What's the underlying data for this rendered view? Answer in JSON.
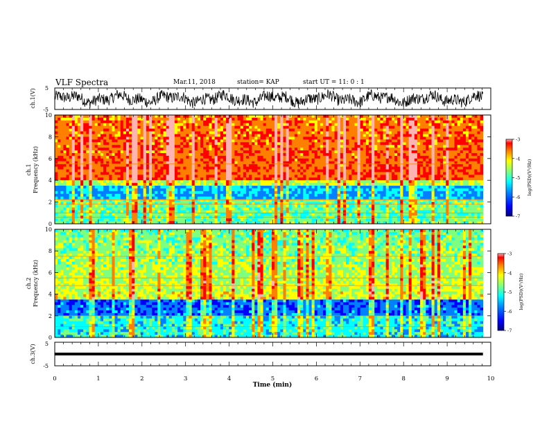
{
  "header": {
    "title": "VLF Spectra",
    "date": "Mar.11, 2018",
    "station": "station= KAP",
    "start_time": "start  UT =   11: 0  : 1"
  },
  "chart_data": [
    {
      "type": "line",
      "panel": "ch1-waveform",
      "ylabel": "ch.1(V)",
      "ylim": [
        -5,
        5
      ],
      "yticks": [
        5,
        -5
      ],
      "x_range_min": [
        0,
        9.82
      ],
      "series_color": "#000000"
    },
    {
      "type": "heatmap",
      "panel": "ch1-spectrogram",
      "ylabel": "ch.1 Frequency (kHz)",
      "ylim": [
        0,
        10
      ],
      "yticks": [
        0,
        2,
        4,
        6,
        8,
        10
      ],
      "x_range_min": [
        0,
        9.82
      ],
      "colorbar": {
        "label": "log(PSD)(V²/Hz)",
        "range": [
          -7,
          -3
        ],
        "ticks": [
          "-3",
          "-4",
          "-5",
          "-6",
          "-7"
        ]
      },
      "bands_khz": {
        "red_intense": [
          4.0,
          10.0
        ],
        "yellow_green": [
          3.5,
          4.0
        ],
        "blue_dark": [
          2.3,
          3.5
        ],
        "green_low": [
          0,
          2.3
        ]
      },
      "tonal_lines_khz": [
        5.5,
        2.2,
        1.8,
        1.0,
        0.6
      ]
    },
    {
      "type": "heatmap",
      "panel": "ch2-spectrogram",
      "ylabel": "ch.2 Frequency (kHz)",
      "ylim": [
        0,
        10
      ],
      "yticks": [
        0,
        2,
        4,
        6,
        8,
        10
      ],
      "x_range_min": [
        0,
        9.82
      ],
      "colorbar": {
        "label": "log(PSD)(V²/Hz)",
        "range": [
          -7,
          -3
        ],
        "ticks": [
          "-3",
          "-4",
          "-5",
          "-6",
          "-7"
        ]
      },
      "bands_khz": {
        "green_yellow": [
          3.5,
          10.0
        ],
        "blue_dark": [
          2.0,
          3.5
        ],
        "cyan_low": [
          0,
          2.0
        ]
      },
      "tonal_lines_khz": [
        7.5,
        5.5,
        4.8,
        2.0,
        1.0
      ]
    },
    {
      "type": "line",
      "panel": "ch3-waveform",
      "ylabel": "ch.3(V)",
      "ylim": [
        -5,
        5
      ],
      "yticks": [
        5,
        -5
      ],
      "x_range_min": [
        0,
        9.82
      ],
      "constant_value": 0,
      "series_color": "#000000"
    }
  ],
  "x_axis": {
    "label": "Time  (min)",
    "range": [
      0,
      10
    ],
    "ticks": [
      "0",
      "1",
      "2",
      "3",
      "4",
      "5",
      "6",
      "7",
      "8",
      "9",
      "10"
    ]
  },
  "colors": {
    "c0": "#00007f",
    "c1": "#0000ff",
    "c2": "#007fff",
    "c3": "#00ffff",
    "c4": "#7fff7f",
    "c5": "#ffff00",
    "c6": "#ff7f00",
    "c7": "#ff0000",
    "c8": "#ffb4b4"
  }
}
